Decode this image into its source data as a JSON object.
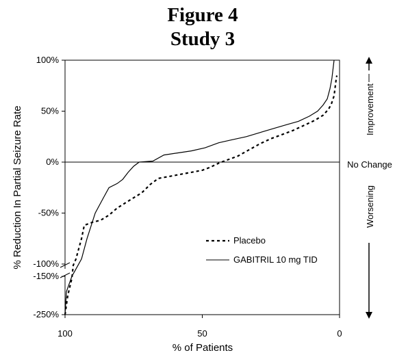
{
  "figure": {
    "title_line1": "Figure 4",
    "title_line2": "Study 3"
  },
  "side_labels": {
    "improvement": "Improvement",
    "no_change": "No Change",
    "worsening": "Worsening"
  },
  "chart_data": {
    "type": "line",
    "xlabel": "% of Patients",
    "ylabel": "% Reduction In Partial Seizure Rate",
    "xlim": [
      100,
      0
    ],
    "ylim": [
      -250,
      100
    ],
    "y_axis_break": [
      -100,
      -150
    ],
    "x_ticks": [
      "100",
      "50",
      "0"
    ],
    "y_ticks": [
      "100%",
      "50%",
      "0%",
      "-50%",
      "-100%",
      "-150%",
      "-250%"
    ],
    "legend": {
      "position": "lower-right"
    },
    "grid": false,
    "series": [
      {
        "name": "Placebo",
        "style": "dashed",
        "color": "#000000",
        "points": [
          [
            100,
            -250
          ],
          [
            99,
            -200
          ],
          [
            98,
            -170
          ],
          [
            97.5,
            -155
          ],
          [
            97,
            -105
          ],
          [
            96,
            -95
          ],
          [
            95,
            -85
          ],
          [
            94,
            -75
          ],
          [
            93,
            -62
          ],
          [
            90,
            -59
          ],
          [
            87,
            -57
          ],
          [
            84,
            -52
          ],
          [
            81,
            -45
          ],
          [
            78,
            -40
          ],
          [
            75,
            -35
          ],
          [
            72,
            -30
          ],
          [
            69,
            -22
          ],
          [
            66,
            -16
          ],
          [
            62,
            -14
          ],
          [
            58,
            -12
          ],
          [
            54,
            -10
          ],
          [
            50,
            -8
          ],
          [
            47,
            -5
          ],
          [
            44,
            -1
          ],
          [
            41,
            2
          ],
          [
            37,
            6
          ],
          [
            33,
            12
          ],
          [
            29,
            18
          ],
          [
            25,
            23
          ],
          [
            21,
            27
          ],
          [
            17,
            31
          ],
          [
            13,
            36
          ],
          [
            9,
            41
          ],
          [
            6,
            46
          ],
          [
            4,
            52
          ],
          [
            3,
            57
          ],
          [
            2,
            65
          ],
          [
            1.3,
            80
          ],
          [
            1,
            85
          ]
        ]
      },
      {
        "name": "GABITRIL 10 mg TID",
        "style": "solid",
        "color": "#000000",
        "points": [
          [
            100,
            -250
          ],
          [
            99.5,
            -190
          ],
          [
            98.5,
            -170
          ],
          [
            97.5,
            -150
          ],
          [
            96.5,
            -130
          ],
          [
            95.5,
            -110
          ],
          [
            94,
            -95
          ],
          [
            92,
            -75
          ],
          [
            89,
            -50
          ],
          [
            86,
            -35
          ],
          [
            84,
            -25
          ],
          [
            81,
            -21
          ],
          [
            79,
            -17
          ],
          [
            77,
            -10
          ],
          [
            75,
            -4
          ],
          [
            73,
            0
          ],
          [
            68,
            1
          ],
          [
            64,
            7
          ],
          [
            59,
            9
          ],
          [
            54,
            11
          ],
          [
            49,
            14
          ],
          [
            44,
            19
          ],
          [
            39,
            22
          ],
          [
            34,
            25
          ],
          [
            29,
            29
          ],
          [
            24,
            33
          ],
          [
            19,
            37
          ],
          [
            15,
            40
          ],
          [
            11,
            45
          ],
          [
            8,
            50
          ],
          [
            6,
            56
          ],
          [
            4.5,
            62
          ],
          [
            3.5,
            72
          ],
          [
            2.8,
            82
          ],
          [
            2,
            100
          ]
        ]
      }
    ]
  }
}
